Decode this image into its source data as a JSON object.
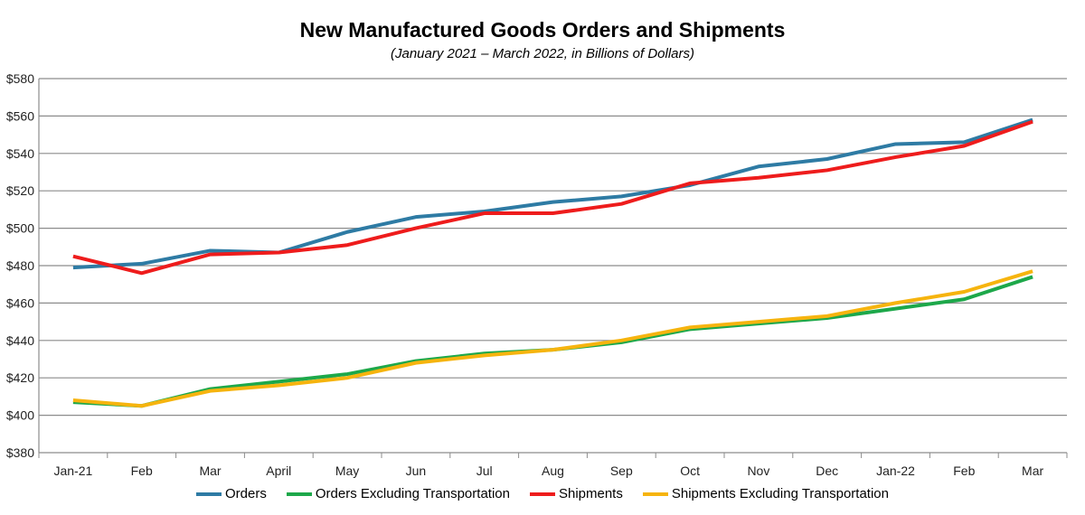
{
  "chart_data": {
    "type": "line",
    "title": "New Manufactured Goods Orders and Shipments",
    "subtitle": "(January 2021 – March 2022, in Billions of Dollars)",
    "xlabel": "",
    "ylabel": "",
    "ylim": [
      380,
      580
    ],
    "yticks": [
      380,
      400,
      420,
      440,
      460,
      480,
      500,
      520,
      540,
      560,
      580
    ],
    "ytick_labels": [
      "$380",
      "$400",
      "$420",
      "$440",
      "$460",
      "$480",
      "$500",
      "$520",
      "$540",
      "$560",
      "$580"
    ],
    "grid": true,
    "legend_position": "bottom",
    "categories": [
      "Jan-21",
      "Feb",
      "Mar",
      "April",
      "May",
      "Jun",
      "Jul",
      "Aug",
      "Sep",
      "Oct",
      "Nov",
      "Dec",
      "Jan-22",
      "Feb",
      "Mar"
    ],
    "series": [
      {
        "name": "Orders",
        "color": "#2E7BA4",
        "values": [
          479,
          481,
          488,
          487,
          498,
          506,
          509,
          514,
          517,
          523,
          533,
          537,
          545,
          546,
          558
        ]
      },
      {
        "name": "Orders Excluding Transportation",
        "color": "#1DA84A",
        "values": [
          407,
          405,
          414,
          418,
          422,
          429,
          433,
          435,
          439,
          446,
          449,
          452,
          457,
          462,
          474
        ]
      },
      {
        "name": "Shipments",
        "color": "#EE1C1C",
        "values": [
          485,
          476,
          486,
          487,
          491,
          500,
          508,
          508,
          513,
          524,
          527,
          531,
          538,
          544,
          557
        ]
      },
      {
        "name": "Shipments Excluding Transportation",
        "color": "#F6B40E",
        "values": [
          408,
          405,
          413,
          416,
          420,
          428,
          432,
          435,
          440,
          447,
          450,
          453,
          460,
          466,
          477
        ]
      }
    ]
  }
}
